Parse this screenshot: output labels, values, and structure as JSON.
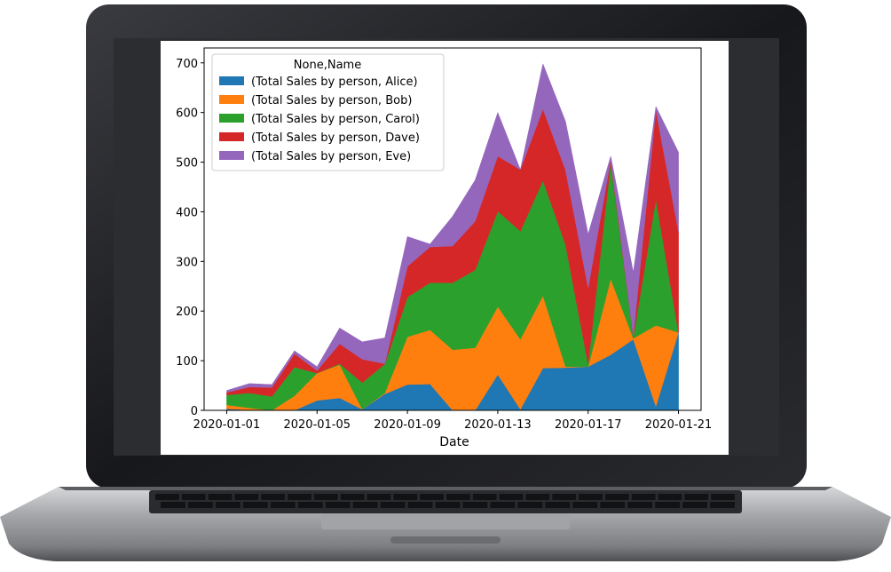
{
  "colors": {
    "bezel": "#1d1e22",
    "screen_frame": "#2c2d31",
    "body_silver": "#b9babd",
    "keyboard": "#2a2b2e",
    "plot_background": "#ffffff"
  },
  "chart_data": {
    "type": "area",
    "stacked": true,
    "xlabel": "Date",
    "ylabel": "",
    "legend_title": "None,Name",
    "legend_position": "top-left",
    "grid": false,
    "ylim": [
      0,
      730
    ],
    "yticks": [
      0,
      100,
      200,
      300,
      400,
      500,
      600,
      700
    ],
    "xticks": [
      "2020-01-01",
      "2020-01-05",
      "2020-01-09",
      "2020-01-13",
      "2020-01-17",
      "2020-01-21"
    ],
    "x": [
      "2020-01-01",
      "2020-01-02",
      "2020-01-03",
      "2020-01-04",
      "2020-01-05",
      "2020-01-06",
      "2020-01-07",
      "2020-01-08",
      "2020-01-09",
      "2020-01-10",
      "2020-01-11",
      "2020-01-12",
      "2020-01-13",
      "2020-01-14",
      "2020-01-15",
      "2020-01-16",
      "2020-01-17",
      "2020-01-18",
      "2020-01-19",
      "2020-01-20",
      "2020-01-21"
    ],
    "series": [
      {
        "name": "(Total Sales by person, Alice)",
        "color": "#1f77b4",
        "values": [
          3,
          1,
          0,
          0,
          20,
          25,
          2,
          33,
          52,
          53,
          0,
          0,
          72,
          2,
          85,
          86,
          88,
          112,
          143,
          8,
          157
        ]
      },
      {
        "name": "(Total Sales by person, Bob)",
        "color": "#ff7f0e",
        "values": [
          8,
          4,
          0,
          29,
          55,
          67,
          0,
          2,
          96,
          109,
          122,
          126,
          137,
          141,
          146,
          2,
          0,
          153,
          2,
          163,
          0
        ]
      },
      {
        "name": "(Total Sales by person, Carol)",
        "color": "#2ca02c",
        "values": [
          20,
          30,
          28,
          58,
          0,
          2,
          54,
          58,
          80,
          95,
          135,
          157,
          192,
          218,
          232,
          246,
          5,
          233,
          2,
          254,
          0
        ]
      },
      {
        "name": "(Total Sales by person, Dave)",
        "color": "#d62728",
        "values": [
          5,
          12,
          18,
          27,
          5,
          40,
          47,
          1,
          62,
          72,
          74,
          98,
          111,
          124,
          144,
          150,
          154,
          6,
          3,
          180,
          203
        ]
      },
      {
        "name": "(Total Sales by person, Eve)",
        "color": "#9467bd",
        "values": [
          4,
          7,
          6,
          6,
          8,
          32,
          35,
          52,
          60,
          6,
          60,
          83,
          88,
          0,
          91,
          98,
          108,
          8,
          128,
          7,
          160
        ]
      }
    ]
  }
}
